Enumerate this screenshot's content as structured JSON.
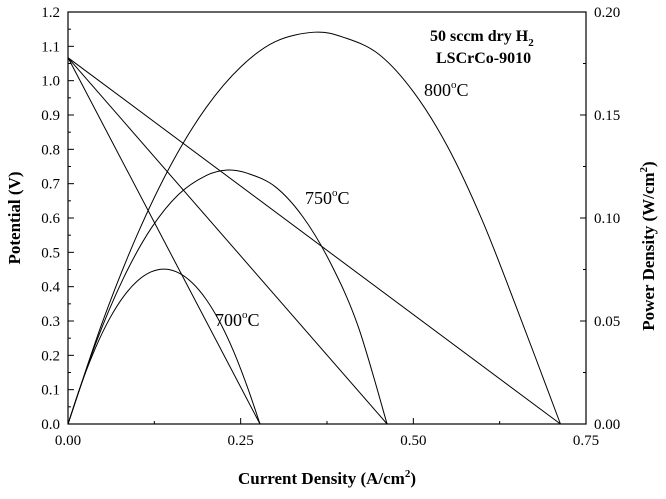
{
  "chart_data": {
    "type": "line",
    "title": "",
    "xlabel": "Current Density (A/cm",
    "xlabel_sup": "2",
    "xlabel_tail": ")",
    "ylabel": "Potential (V)",
    "y2label": "Power Density (W/cm",
    "y2label_sup": "2",
    "y2label_tail": ")",
    "xlim": [
      0,
      0.75
    ],
    "ylim": [
      0,
      1.2
    ],
    "y2lim": [
      0,
      0.2
    ],
    "xticks": [
      0.0,
      0.25,
      0.5,
      0.75
    ],
    "xtick_labels": [
      "0.00",
      "0.25",
      "0.50",
      "0.75"
    ],
    "yticks": [
      0.0,
      0.1,
      0.2,
      0.3,
      0.4,
      0.5,
      0.6,
      0.7,
      0.8,
      0.9,
      1.0,
      1.1,
      1.2
    ],
    "ytick_labels": [
      "0.0",
      "0.1",
      "0.2",
      "0.3",
      "0.4",
      "0.5",
      "0.6",
      "0.7",
      "0.8",
      "0.9",
      "1.0",
      "1.1",
      "1.2"
    ],
    "y2ticks": [
      0.0,
      0.05,
      0.1,
      0.15,
      0.2
    ],
    "y2tick_labels": [
      "0.00",
      "0.05",
      "0.10",
      "0.15",
      "0.20"
    ],
    "series": [
      {
        "name": "700°C",
        "axis": "left",
        "kind": "voltage",
        "x": [
          0.0,
          0.278
        ],
        "y": [
          1.067,
          0.0
        ]
      },
      {
        "name": "750°C",
        "axis": "left",
        "kind": "voltage",
        "x": [
          0.0,
          0.462
        ],
        "y": [
          1.067,
          0.0
        ]
      },
      {
        "name": "800°C",
        "axis": "left",
        "kind": "voltage",
        "x": [
          0.0,
          0.713
        ],
        "y": [
          1.067,
          0.0
        ]
      },
      {
        "name": "700°C",
        "axis": "right",
        "kind": "power",
        "x": [
          0.0,
          0.02,
          0.04,
          0.06,
          0.08,
          0.1,
          0.12,
          0.14,
          0.16,
          0.18,
          0.2,
          0.22,
          0.24,
          0.26,
          0.278
        ],
        "y": [
          0.0,
          0.0201,
          0.0371,
          0.051,
          0.0617,
          0.0693,
          0.0738,
          0.0752,
          0.0734,
          0.0685,
          0.0605,
          0.0494,
          0.0351,
          0.0177,
          0.0
        ]
      },
      {
        "name": "750°C",
        "axis": "right",
        "kind": "power",
        "x": [
          0.0,
          0.04,
          0.08,
          0.12,
          0.16,
          0.2,
          0.231,
          0.26,
          0.3,
          0.34,
          0.38,
          0.42,
          0.462
        ],
        "y": [
          0.0,
          0.039,
          0.0706,
          0.0948,
          0.1114,
          0.1206,
          0.1233,
          0.1217,
          0.1152,
          0.1006,
          0.0782,
          0.0475,
          0.0
        ]
      },
      {
        "name": "800°C",
        "axis": "right",
        "kind": "power",
        "x": [
          0.0,
          0.05,
          0.1,
          0.15,
          0.2,
          0.25,
          0.3,
          0.357,
          0.4,
          0.45,
          0.5,
          0.55,
          0.6,
          0.65,
          0.713
        ],
        "y": [
          0.0,
          0.0496,
          0.0917,
          0.1264,
          0.1536,
          0.1733,
          0.1856,
          0.1902,
          0.1876,
          0.1795,
          0.1613,
          0.1344,
          0.0987,
          0.056,
          0.0
        ]
      }
    ],
    "annotations": [
      {
        "name": "label-700",
        "text": "700",
        "sup": "o",
        "tail": "C"
      },
      {
        "name": "label-750",
        "text": "750",
        "sup": "o",
        "tail": "C"
      },
      {
        "name": "label-800",
        "text": "800",
        "sup": "o",
        "tail": "C"
      }
    ],
    "legend_text": {
      "line1": "50 sccm dry H",
      "line1_sub": "2",
      "line2": "LSCrCo-9010"
    }
  }
}
